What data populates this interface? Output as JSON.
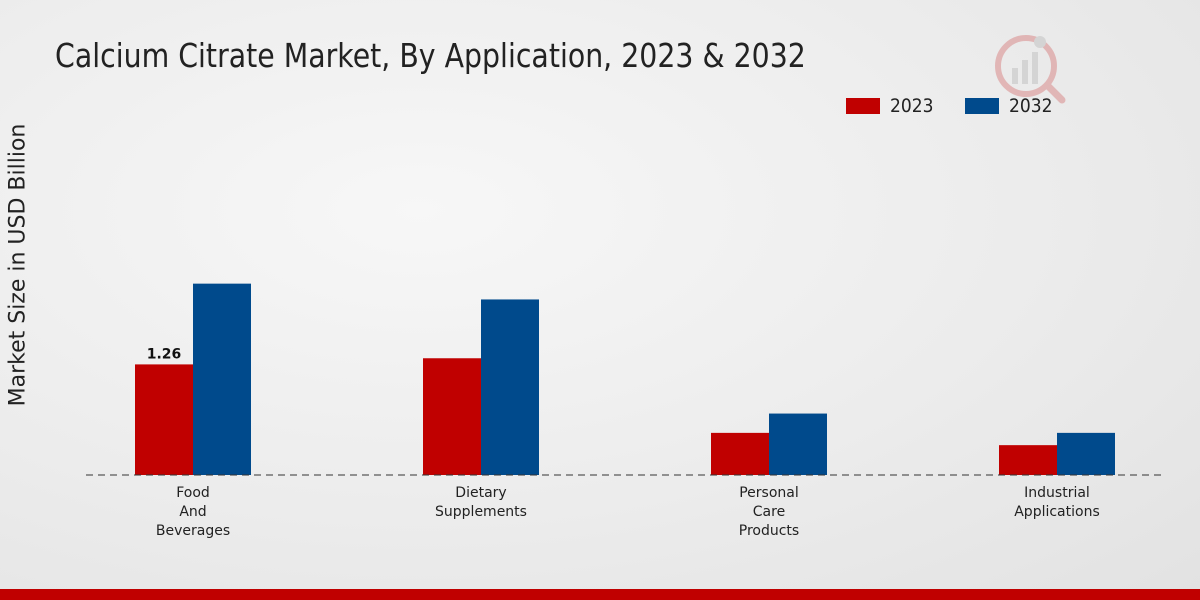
{
  "title": "Calcium Citrate Market, By Application, 2023 & 2032",
  "colors": {
    "s2023": "#c00000",
    "s2032": "#004a8c",
    "footer": "#c00000",
    "text": "#222222"
  },
  "chart_data": {
    "type": "bar",
    "title": "Calcium Citrate Market, By Application, 2023 & 2032",
    "xlabel": "",
    "ylabel": "Market Size in USD Billion",
    "ylim": [
      0,
      4.5
    ],
    "grid": false,
    "legend_position": "top-right",
    "categories": [
      [
        "Food",
        "And",
        "Beverages"
      ],
      [
        "Dietary",
        "Supplements"
      ],
      [
        "Personal",
        "Care",
        "Products"
      ],
      [
        "Industrial",
        "Applications"
      ]
    ],
    "series": [
      {
        "name": "2023",
        "color": "#c00000",
        "values": [
          1.26,
          1.33,
          0.48,
          0.34
        ]
      },
      {
        "name": "2032",
        "color": "#004a8c",
        "values": [
          2.18,
          2.0,
          0.7,
          0.48
        ]
      }
    ],
    "annotations": [
      {
        "series": "2023",
        "category_index": 0,
        "text": "1.26"
      }
    ]
  }
}
